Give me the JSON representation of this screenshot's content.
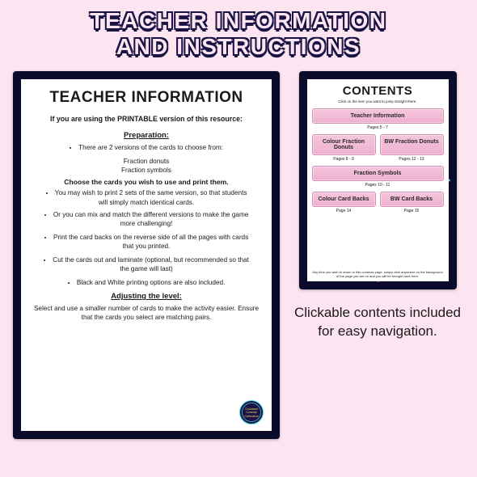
{
  "header": {
    "line1": "TEACHER INFORMATION",
    "line2": "AND INSTRUCTIONS"
  },
  "teacher_info": {
    "title": "TEACHER INFORMATION",
    "intro": "If you are using the PRINTABLE version of this resource:",
    "section1_title": "Preparation:",
    "bullet1": "There are 2 versions of the cards to choose from:",
    "versions": [
      "Fraction donuts",
      "Fraction symbols"
    ],
    "bold_choose": "Choose the cards you wish to use and print them.",
    "bullet2": "You may wish to print 2 sets of the same version, so that students will simply match identical cards.",
    "bullet3": "Or you can mix and match the different versions to make the game more challenging!",
    "bullet4": "Print the card backs on the reverse side of all the pages with cards that you printed.",
    "bullet5": "Cut the cards out and laminate (optional, but recommended so that the game will last)",
    "bullet6": "Black and White printing options are also included.",
    "section2_title": "Adjusting the level:",
    "adjust_text": "Select and use a smaller number of cards to make the activity easier. Ensure that the cards you select are matching pairs.",
    "logo_text": "Colossal Cosmic Collection"
  },
  "contents": {
    "title": "CONTENTS",
    "hint": "Click on the item you want to jump straight there.",
    "items": [
      {
        "label": "Teacher Information",
        "pages": "Pages 5 - 7",
        "full": true
      },
      {
        "label": "Colour Fraction Donuts",
        "pages": "Pages 8 - 9",
        "full": false
      },
      {
        "label": "BW Fraction Donuts",
        "pages": "Pages 12 - 13",
        "full": false
      },
      {
        "label": "Fraction Symbols",
        "pages": "Pages 10 - 11",
        "full": true
      },
      {
        "label": "Colour Card Backs",
        "pages": "Page 14",
        "full": false
      },
      {
        "label": "BW Card Backs",
        "pages": "Page 15",
        "full": false
      }
    ],
    "foot": "Any time you wish to return to this contents page, simply click anywhere on the background of the page you are on and you will be brought back here."
  },
  "caption": "Clickable contents included for easy navigation.",
  "colors": {
    "page_bg": "#fce4f0",
    "panel_bg": "#0a0a2a",
    "star1": "#4dd8e6",
    "star2": "#e64dd8",
    "button_bg": "#f5c6dd",
    "button_border": "#d48fb4",
    "header_outline": "#1a1445"
  }
}
